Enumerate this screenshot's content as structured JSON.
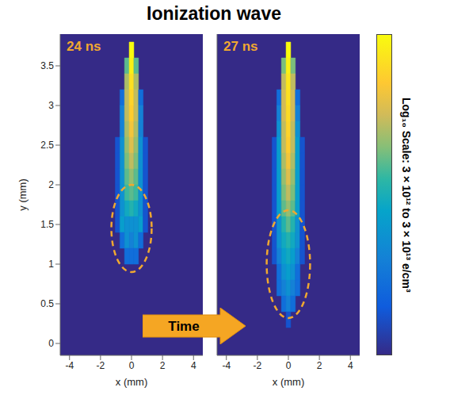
{
  "title": "Ionization wave",
  "annotation": "Time",
  "colorbar": {
    "range": [
      3000000000000.0,
      30000000000000.0
    ],
    "label": "Log₁₀ Scale: 3×10¹² to 3×10¹³ e/cm³"
  },
  "chart_data": [
    {
      "type": "heatmap",
      "title": "24 ns",
      "x_label": "x (mm)",
      "y_label": "y (mm)",
      "xlim": [
        -4.6,
        4.6
      ],
      "ylim": [
        -0.15,
        3.9
      ],
      "xticks": [
        -4,
        -2,
        0,
        2,
        4
      ],
      "yticks": [
        0,
        0.5,
        1,
        1.5,
        2,
        2.5,
        3,
        3.5
      ],
      "x": [
        -1.2,
        -0.9,
        -0.6,
        -0.3,
        0,
        0.3,
        0.6,
        0.9,
        1.2
      ],
      "y": [
        3.7,
        3.5,
        3.3,
        3.1,
        2.9,
        2.7,
        2.5,
        2.3,
        2.1,
        1.9,
        1.7,
        1.5,
        1.3,
        1.1,
        0.9,
        0.7,
        0.5,
        0.3,
        0.1
      ],
      "z": [
        [
          null,
          null,
          null,
          null,
          30000000000000.0,
          null,
          null,
          null,
          null
        ],
        [
          null,
          null,
          null,
          12000000000000.0,
          28000000000000.0,
          12000000000000.0,
          null,
          null,
          null
        ],
        [
          null,
          null,
          null,
          15000000000000.0,
          25000000000000.0,
          15000000000000.0,
          null,
          null,
          null
        ],
        [
          null,
          null,
          5000000000000.0,
          16000000000000.0,
          23000000000000.0,
          16000000000000.0,
          5000000000000.0,
          null,
          null
        ],
        [
          null,
          null,
          6000000000000.0,
          16000000000000.0,
          22000000000000.0,
          16000000000000.0,
          6000000000000.0,
          null,
          null
        ],
        [
          null,
          null,
          6000000000000.0,
          15000000000000.0,
          20000000000000.0,
          15000000000000.0,
          6000000000000.0,
          null,
          null
        ],
        [
          null,
          4000000000000.0,
          7000000000000.0,
          14000000000000.0,
          18000000000000.0,
          14000000000000.0,
          7000000000000.0,
          4000000000000.0,
          null
        ],
        [
          null,
          4000000000000.0,
          7000000000000.0,
          13000000000000.0,
          16000000000000.0,
          13000000000000.0,
          7000000000000.0,
          4000000000000.0,
          null
        ],
        [
          null,
          4000000000000.0,
          7000000000000.0,
          12000000000000.0,
          14000000000000.0,
          12000000000000.0,
          7000000000000.0,
          4000000000000.0,
          null
        ],
        [
          null,
          4000000000000.0,
          7000000000000.0,
          11000000000000.0,
          12000000000000.0,
          11000000000000.0,
          7000000000000.0,
          4000000000000.0,
          null
        ],
        [
          null,
          4000000000000.0,
          7000000000000.0,
          9000000000000.0,
          10000000000000.0,
          9000000000000.0,
          7000000000000.0,
          4000000000000.0,
          null
        ],
        [
          null,
          4000000000000.0,
          8000000000000.0,
          7000000000000.0,
          7000000000000.0,
          7000000000000.0,
          8000000000000.0,
          4000000000000.0,
          null
        ],
        [
          null,
          null,
          5000000000000.0,
          7000000000000.0,
          6000000000000.0,
          7000000000000.0,
          5000000000000.0,
          null,
          null
        ],
        [
          null,
          null,
          null,
          5000000000000.0,
          5000000000000.0,
          5000000000000.0,
          null,
          null,
          null
        ],
        [
          null,
          null,
          null,
          null,
          null,
          null,
          null,
          null,
          null
        ],
        [
          null,
          null,
          null,
          null,
          null,
          null,
          null,
          null,
          null
        ],
        [
          null,
          null,
          null,
          null,
          null,
          null,
          null,
          null,
          null
        ],
        [
          null,
          null,
          null,
          null,
          null,
          null,
          null,
          null,
          null
        ],
        [
          null,
          null,
          null,
          null,
          null,
          null,
          null,
          null,
          null
        ]
      ]
    },
    {
      "type": "heatmap",
      "title": "27 ns",
      "x_label": "x (mm)",
      "tick_labels": "x",
      "xlim": [
        -4.6,
        4.6
      ],
      "ylim": [
        -0.15,
        3.9
      ],
      "xticks": [
        -4,
        -2,
        0,
        2,
        4
      ],
      "yticks": [
        0,
        0.5,
        1,
        1.5,
        2,
        2.5,
        3,
        3.5
      ],
      "x": [
        -1.2,
        -0.9,
        -0.6,
        -0.3,
        0,
        0.3,
        0.6,
        0.9,
        1.2
      ],
      "y": [
        3.7,
        3.5,
        3.3,
        3.1,
        2.9,
        2.7,
        2.5,
        2.3,
        2.1,
        1.9,
        1.7,
        1.5,
        1.3,
        1.1,
        0.9,
        0.7,
        0.5,
        0.3,
        0.1
      ],
      "z": [
        [
          null,
          null,
          null,
          null,
          30000000000000.0,
          null,
          null,
          null,
          null
        ],
        [
          null,
          null,
          null,
          13000000000000.0,
          28000000000000.0,
          13000000000000.0,
          null,
          null,
          null
        ],
        [
          null,
          null,
          null,
          16000000000000.0,
          26000000000000.0,
          16000000000000.0,
          null,
          null,
          null
        ],
        [
          null,
          null,
          5000000000000.0,
          17000000000000.0,
          25000000000000.0,
          17000000000000.0,
          5000000000000.0,
          null,
          null
        ],
        [
          null,
          null,
          6000000000000.0,
          17000000000000.0,
          24000000000000.0,
          17000000000000.0,
          6000000000000.0,
          null,
          null
        ],
        [
          null,
          null,
          7000000000000.0,
          16000000000000.0,
          23000000000000.0,
          16000000000000.0,
          7000000000000.0,
          null,
          null
        ],
        [
          null,
          4000000000000.0,
          8000000000000.0,
          16000000000000.0,
          22000000000000.0,
          16000000000000.0,
          8000000000000.0,
          4000000000000.0,
          null
        ],
        [
          null,
          4000000000000.0,
          8000000000000.0,
          15000000000000.0,
          20000000000000.0,
          15000000000000.0,
          8000000000000.0,
          4000000000000.0,
          null
        ],
        [
          null,
          4000000000000.0,
          8000000000000.0,
          14000000000000.0,
          18000000000000.0,
          14000000000000.0,
          8000000000000.0,
          4000000000000.0,
          null
        ],
        [
          null,
          4000000000000.0,
          8000000000000.0,
          13000000000000.0,
          16000000000000.0,
          13000000000000.0,
          8000000000000.0,
          4000000000000.0,
          null
        ],
        [
          null,
          4000000000000.0,
          8000000000000.0,
          12000000000000.0,
          14000000000000.0,
          12000000000000.0,
          8000000000000.0,
          4000000000000.0,
          null
        ],
        [
          null,
          4000000000000.0,
          7000000000000.0,
          10000000000000.0,
          12000000000000.0,
          10000000000000.0,
          7000000000000.0,
          4000000000000.0,
          null
        ],
        [
          null,
          4000000000000.0,
          7000000000000.0,
          9000000000000.0,
          10000000000000.0,
          9000000000000.0,
          7000000000000.0,
          4000000000000.0,
          null
        ],
        [
          null,
          4000000000000.0,
          6000000000000.0,
          8000000000000.0,
          9000000000000.0,
          8000000000000.0,
          6000000000000.0,
          4000000000000.0,
          null
        ],
        [
          null,
          null,
          5000000000000.0,
          7000000000000.0,
          8000000000000.0,
          7000000000000.0,
          5000000000000.0,
          null,
          null
        ],
        [
          null,
          null,
          5000000000000.0,
          6000000000000.0,
          7000000000000.0,
          6000000000000.0,
          5000000000000.0,
          null,
          null
        ],
        [
          null,
          null,
          null,
          5000000000000.0,
          6000000000000.0,
          5000000000000.0,
          null,
          null,
          null
        ],
        [
          null,
          null,
          null,
          null,
          4000000000000.0,
          null,
          null,
          null,
          null
        ],
        [
          null,
          null,
          null,
          null,
          null,
          null,
          null,
          null,
          null
        ]
      ]
    }
  ]
}
